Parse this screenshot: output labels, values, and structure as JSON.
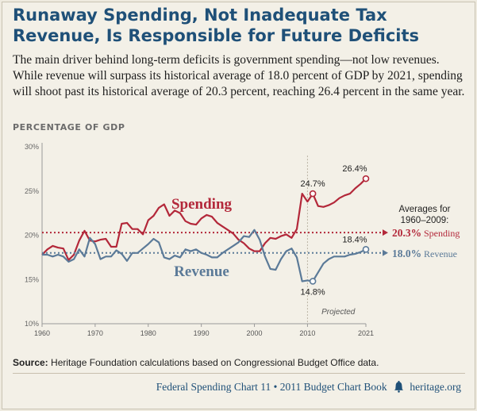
{
  "header": {
    "title_line1": "Runaway Spending, Not Inadequate Tax",
    "title_line2": "Revenue, Is Responsible for Future Deficits",
    "subtitle": "The main driver behind long-term deficits is government spending—not low revenues. While revenue will surpass its historical average of 18.0 percent of GDP by 2021, spending will shoot past its historical average of 20.3 percent, reaching 26.4 percent in the same year."
  },
  "chart_data": {
    "type": "line",
    "ylabel": "PERCENTAGE OF GDP",
    "xlim": [
      1960,
      2021
    ],
    "ylim": [
      10,
      30
    ],
    "x_ticks": [
      "1960",
      "1970",
      "1980",
      "1990",
      "2000",
      "2010",
      "2021"
    ],
    "y_ticks": [
      "10%",
      "15%",
      "20%",
      "25%",
      "30%"
    ],
    "grid": false,
    "projected_from": 2010,
    "projected_label": "Projected",
    "averages_title": "Averages for 1960–2009:",
    "series": [
      {
        "name": "Spending",
        "color": "#b3283a",
        "average": 20.3,
        "average_label": "20.3%",
        "average_name": "Spending",
        "x": [
          1960,
          1961,
          1962,
          1963,
          1964,
          1965,
          1966,
          1967,
          1968,
          1969,
          1970,
          1971,
          1972,
          1973,
          1974,
          1975,
          1976,
          1977,
          1978,
          1979,
          1980,
          1981,
          1982,
          1983,
          1984,
          1985,
          1986,
          1987,
          1988,
          1989,
          1990,
          1991,
          1992,
          1993,
          1994,
          1995,
          1996,
          1997,
          1998,
          1999,
          2000,
          2001,
          2002,
          2003,
          2004,
          2005,
          2006,
          2007,
          2008,
          2009,
          2010,
          2011,
          2012,
          2013,
          2014,
          2015,
          2016,
          2017,
          2018,
          2019,
          2020,
          2021
        ],
        "values": [
          17.8,
          18.4,
          18.8,
          18.6,
          18.5,
          17.2,
          17.8,
          19.4,
          20.5,
          19.4,
          19.3,
          19.5,
          19.6,
          18.7,
          18.7,
          21.3,
          21.4,
          20.7,
          20.7,
          20.1,
          21.7,
          22.2,
          23.1,
          23.5,
          22.2,
          22.8,
          22.5,
          21.6,
          21.3,
          21.2,
          21.9,
          22.3,
          22.1,
          21.4,
          21.0,
          20.6,
          20.2,
          19.5,
          19.1,
          18.5,
          18.2,
          18.2,
          19.1,
          19.7,
          19.6,
          19.9,
          20.1,
          19.7,
          20.7,
          24.7,
          23.8,
          24.7,
          23.3,
          23.2,
          23.4,
          23.7,
          24.2,
          24.5,
          24.7,
          25.3,
          25.8,
          26.4
        ],
        "highlights": [
          {
            "x": 2011,
            "value": 24.7,
            "label": "24.7%"
          },
          {
            "x": 2021,
            "value": 26.4,
            "label": "26.4%"
          }
        ]
      },
      {
        "name": "Revenue",
        "color": "#5b7a98",
        "average": 18.0,
        "average_label": "18.0%",
        "average_name": "Revenue",
        "x": [
          1960,
          1961,
          1962,
          1963,
          1964,
          1965,
          1966,
          1967,
          1968,
          1969,
          1970,
          1971,
          1972,
          1973,
          1974,
          1975,
          1976,
          1977,
          1978,
          1979,
          1980,
          1981,
          1982,
          1983,
          1984,
          1985,
          1986,
          1987,
          1988,
          1989,
          1990,
          1991,
          1992,
          1993,
          1994,
          1995,
          1996,
          1997,
          1998,
          1999,
          2000,
          2001,
          2002,
          2003,
          2004,
          2005,
          2006,
          2007,
          2008,
          2009,
          2010,
          2011,
          2012,
          2013,
          2014,
          2015,
          2016,
          2017,
          2018,
          2019,
          2020,
          2021
        ],
        "values": [
          17.8,
          17.8,
          17.6,
          17.8,
          17.6,
          17.0,
          17.3,
          18.4,
          17.6,
          19.7,
          19.0,
          17.3,
          17.6,
          17.6,
          18.3,
          17.9,
          17.1,
          18.0,
          18.0,
          18.5,
          19.0,
          19.6,
          19.2,
          17.5,
          17.3,
          17.7,
          17.5,
          18.4,
          18.2,
          18.4,
          18.0,
          17.8,
          17.5,
          17.5,
          18.0,
          18.4,
          18.8,
          19.2,
          19.9,
          19.8,
          20.6,
          19.5,
          17.6,
          16.2,
          16.1,
          17.3,
          18.2,
          18.5,
          17.5,
          14.8,
          14.9,
          14.8,
          15.8,
          16.8,
          17.3,
          17.6,
          17.6,
          17.6,
          17.8,
          17.9,
          18.1,
          18.4
        ],
        "highlights": [
          {
            "x": 2011,
            "value": 14.8,
            "label": "14.8%"
          },
          {
            "x": 2021,
            "value": 18.4,
            "label": "18.4%"
          }
        ]
      }
    ]
  },
  "source": {
    "label": "Source:",
    "text": " Heritage Foundation calculations based on Congressional Budget Office data."
  },
  "footer": {
    "chart_name": "Federal Spending Chart 11 • 2011 Budget Chart Book",
    "site": "heritage.org",
    "icon": "liberty-bell-icon"
  }
}
